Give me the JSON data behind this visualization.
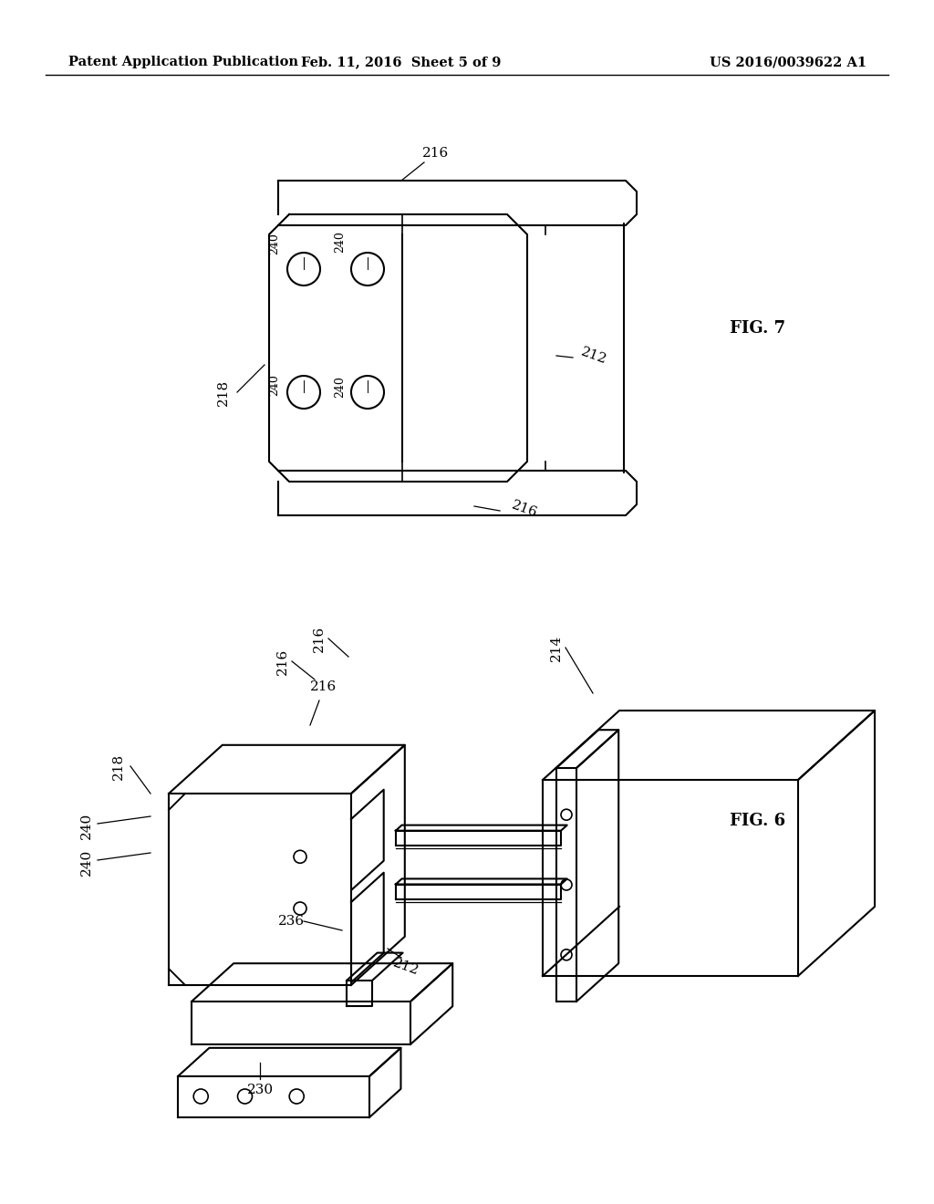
{
  "bg_color": "#ffffff",
  "line_color": "#000000",
  "header": {
    "left": "Patent Application Publication",
    "center": "Feb. 11, 2016  Sheet 5 of 9",
    "right": "US 2016/0039622 A1",
    "fontsize": 10.5
  },
  "fig7_label": "FIG. 7",
  "fig6_label": "FIG. 6"
}
